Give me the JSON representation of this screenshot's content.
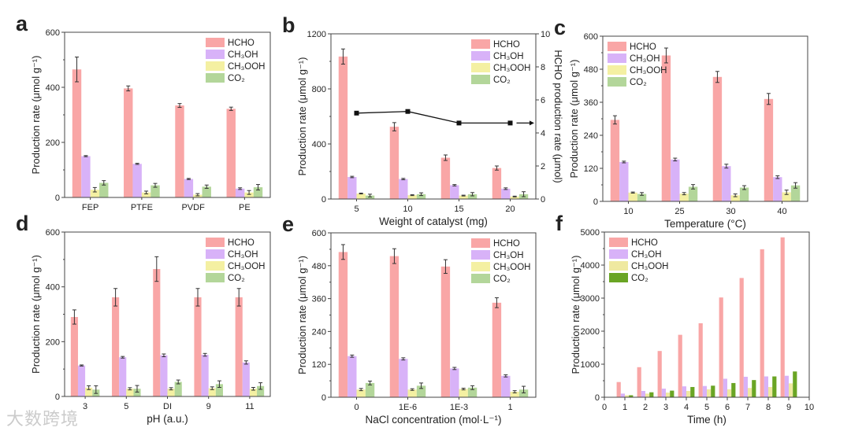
{
  "watermark": "大数跨境",
  "colors": {
    "HCHO": "#f9a6a6",
    "CH3OH": "#d8b2f8",
    "CH3OOH": "#f4f0a2",
    "CO2": "#b3d69a",
    "CO2_f": "#6aa524",
    "line": "#111111"
  },
  "chart_data": [
    {
      "panel_label": "a",
      "type": "bar",
      "categories": [
        "FEP",
        "PTFE",
        "PVDF",
        "PE"
      ],
      "xlabel": "",
      "ylabel": "Production rate (μmol g⁻¹)",
      "ylim": [
        0,
        600
      ],
      "yticks": [
        0,
        200,
        400,
        600
      ],
      "legend": "top-right",
      "series": [
        {
          "name": "HCHO",
          "color": "#f9a6a6",
          "values": [
            465,
            396,
            334,
            322
          ],
          "err": [
            45,
            9,
            7,
            6
          ]
        },
        {
          "name": "CH₃OH",
          "color": "#d8b2f8",
          "values": [
            150,
            122,
            67,
            32
          ],
          "err": [
            2,
            2,
            2,
            3
          ]
        },
        {
          "name": "CH₃OOH",
          "color": "#f4f0a2",
          "values": [
            28,
            18,
            10,
            18
          ],
          "err": [
            8,
            5,
            4,
            7
          ]
        },
        {
          "name": "CO₂",
          "color": "#b3d69a",
          "values": [
            53,
            44,
            39,
            37
          ],
          "err": [
            8,
            7,
            6,
            10
          ]
        }
      ]
    },
    {
      "panel_label": "b",
      "type": "bar",
      "categories": [
        "5",
        "10",
        "15",
        "20"
      ],
      "xlabel": "Weight of catalyst (mg)",
      "ylabel": "Production rate (μmol g⁻¹)",
      "ylim": [
        0,
        1200
      ],
      "yticks": [
        0,
        400,
        800,
        1200
      ],
      "y2label": "HCHO production rate (μmol)",
      "y2lim": [
        0,
        10
      ],
      "y2ticks": [
        0,
        2,
        4,
        6,
        8,
        10
      ],
      "legend": "top-right",
      "series": [
        {
          "name": "HCHO",
          "color": "#f9a6a6",
          "values": [
            1035,
            525,
            300,
            225
          ],
          "err": [
            55,
            30,
            20,
            15
          ]
        },
        {
          "name": "CH₃OH",
          "color": "#d8b2f8",
          "values": [
            160,
            145,
            100,
            75
          ],
          "err": [
            5,
            5,
            5,
            6
          ]
        },
        {
          "name": "CH₃OOH",
          "color": "#f4f0a2",
          "values": [
            40,
            28,
            25,
            18
          ],
          "err": [
            3,
            3,
            3,
            3
          ]
        },
        {
          "name": "CO₂",
          "color": "#b3d69a",
          "values": [
            25,
            35,
            35,
            35
          ],
          "err": [
            10,
            10,
            12,
            18
          ]
        }
      ],
      "line_series": {
        "name": "HCHO production",
        "axis": "right",
        "values": [
          5.2,
          5.3,
          4.6,
          4.6
        ]
      }
    },
    {
      "panel_label": "c",
      "type": "bar",
      "categories": [
        "10",
        "25",
        "30",
        "40"
      ],
      "xlabel": "Temperature (°C)",
      "ylabel": "Production rate (μmol g⁻¹)",
      "ylim": [
        0,
        600
      ],
      "yticks": [
        0,
        120,
        240,
        360,
        480,
        600
      ],
      "legend": "top-left",
      "series": [
        {
          "name": "HCHO",
          "color": "#f9a6a6",
          "values": [
            296,
            530,
            452,
            372
          ],
          "err": [
            15,
            27,
            20,
            20
          ]
        },
        {
          "name": "CH₃OH",
          "color": "#d8b2f8",
          "values": [
            143,
            152,
            128,
            88
          ],
          "err": [
            3,
            5,
            7,
            5
          ]
        },
        {
          "name": "CH₃OOH",
          "color": "#f4f0a2",
          "values": [
            32,
            28,
            22,
            33
          ],
          "err": [
            2,
            4,
            5,
            8
          ]
        },
        {
          "name": "CO₂",
          "color": "#b3d69a",
          "values": [
            27,
            53,
            50,
            58
          ],
          "err": [
            5,
            8,
            7,
            10
          ]
        }
      ]
    },
    {
      "panel_label": "d",
      "type": "bar",
      "categories": [
        "3",
        "5",
        "DI",
        "9",
        "11"
      ],
      "xlabel": "pH (a.u.)",
      "ylabel": "Production rate (μmol g⁻¹)",
      "ylim": [
        0,
        600
      ],
      "yticks": [
        0,
        200,
        400,
        600
      ],
      "legend": "top-right",
      "series": [
        {
          "name": "HCHO",
          "color": "#f9a6a6",
          "values": [
            290,
            362,
            465,
            362,
            362
          ],
          "err": [
            26,
            32,
            45,
            32,
            32
          ]
        },
        {
          "name": "CH₃OH",
          "color": "#d8b2f8",
          "values": [
            113,
            143,
            150,
            152,
            124
          ],
          "err": [
            2,
            3,
            5,
            5,
            6
          ]
        },
        {
          "name": "CH₃OOH",
          "color": "#f4f0a2",
          "values": [
            32,
            28,
            28,
            30,
            28
          ],
          "err": [
            7,
            4,
            4,
            5,
            5
          ]
        },
        {
          "name": "CO₂",
          "color": "#b3d69a",
          "values": [
            25,
            28,
            53,
            45,
            38
          ],
          "err": [
            14,
            12,
            7,
            12,
            12
          ]
        }
      ]
    },
    {
      "panel_label": "e",
      "type": "bar",
      "categories": [
        "0",
        "1E-6",
        "1E-3",
        "1"
      ],
      "xlabel": "NaCl concentration (mol·L⁻¹)",
      "ylabel": "Production rate (μmol g⁻¹)",
      "ylim": [
        0,
        600
      ],
      "yticks": [
        0,
        120,
        240,
        360,
        480,
        600
      ],
      "legend": "top-right",
      "series": [
        {
          "name": "HCHO",
          "color": "#f9a6a6",
          "values": [
            530,
            515,
            477,
            345
          ],
          "err": [
            27,
            27,
            25,
            18
          ]
        },
        {
          "name": "CH₃OH",
          "color": "#d8b2f8",
          "values": [
            150,
            140,
            105,
            78
          ],
          "err": [
            4,
            4,
            4,
            4
          ]
        },
        {
          "name": "CH₃OOH",
          "color": "#f4f0a2",
          "values": [
            28,
            28,
            30,
            20
          ],
          "err": [
            4,
            3,
            3,
            4
          ]
        },
        {
          "name": "CO₂",
          "color": "#b3d69a",
          "values": [
            52,
            42,
            35,
            28
          ],
          "err": [
            7,
            10,
            7,
            12
          ]
        }
      ]
    },
    {
      "panel_label": "f",
      "type": "bar",
      "x": [
        1,
        2,
        3,
        4,
        5,
        6,
        7,
        8,
        9
      ],
      "xlim": [
        0,
        10
      ],
      "xticks": [
        0,
        1,
        2,
        3,
        4,
        5,
        6,
        7,
        8,
        9,
        10
      ],
      "xlabel": "Time (h)",
      "ylabel": "Production rate (μmol g⁻¹)",
      "ylim": [
        0,
        5000
      ],
      "yticks": [
        0,
        1000,
        2000,
        3000,
        4000,
        5000
      ],
      "legend": "top-left",
      "series": [
        {
          "name": "HCHO",
          "color": "#f9a6a6",
          "values": [
            460,
            910,
            1400,
            1890,
            2240,
            3020,
            3610,
            4480,
            4840
          ]
        },
        {
          "name": "CH₃OH",
          "color": "#d8b2f8",
          "values": [
            110,
            190,
            260,
            330,
            340,
            560,
            620,
            630,
            650
          ]
        },
        {
          "name": "CH₃OOH",
          "color": "#efe9a0",
          "values": [
            60,
            110,
            140,
            190,
            240,
            240,
            280,
            310,
            420
          ]
        },
        {
          "name": "CO₂",
          "color": "#6aa524",
          "values": [
            60,
            150,
            200,
            310,
            350,
            430,
            520,
            630,
            780
          ]
        }
      ]
    }
  ]
}
